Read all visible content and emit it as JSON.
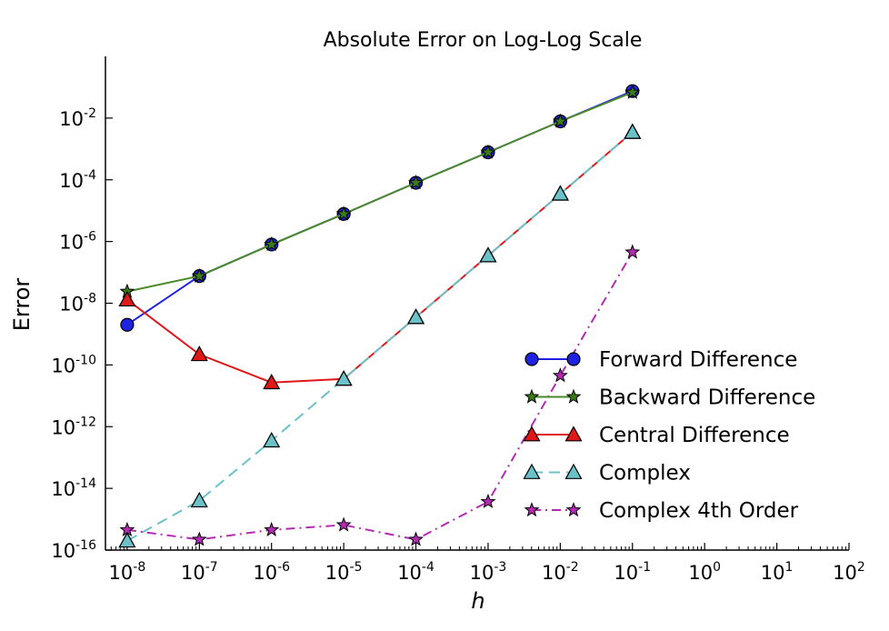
{
  "chart_data": {
    "type": "line",
    "title": "Absolute Error on Log-Log Scale",
    "xlabel": "h",
    "ylabel": "Error",
    "xscale": "log",
    "yscale": "log",
    "xlim": [
      5e-09,
      100
    ],
    "ylim": [
      1e-16,
      1
    ],
    "x_ticks": [
      {
        "base": "10",
        "exp": "-8",
        "value": 1e-08
      },
      {
        "base": "10",
        "exp": "-7",
        "value": 1e-07
      },
      {
        "base": "10",
        "exp": "-6",
        "value": 1e-06
      },
      {
        "base": "10",
        "exp": "-5",
        "value": 1e-05
      },
      {
        "base": "10",
        "exp": "-4",
        "value": 0.0001
      },
      {
        "base": "10",
        "exp": "-3",
        "value": 0.001
      },
      {
        "base": "10",
        "exp": "-2",
        "value": 0.01
      },
      {
        "base": "10",
        "exp": "-1",
        "value": 0.1
      },
      {
        "base": "10",
        "exp": "0",
        "value": 1
      },
      {
        "base": "10",
        "exp": "1",
        "value": 10
      },
      {
        "base": "10",
        "exp": "2",
        "value": 100
      }
    ],
    "y_ticks": [
      {
        "base": "10",
        "exp": "-2",
        "value": 0.01
      },
      {
        "base": "10",
        "exp": "-4",
        "value": 0.0001
      },
      {
        "base": "10",
        "exp": "-6",
        "value": 1e-06
      },
      {
        "base": "10",
        "exp": "-8",
        "value": 1e-08
      },
      {
        "base": "10",
        "exp": "-10",
        "value": 1e-10
      },
      {
        "base": "10",
        "exp": "-12",
        "value": 1e-12
      },
      {
        "base": "10",
        "exp": "-14",
        "value": 1e-14
      },
      {
        "base": "10",
        "exp": "-16",
        "value": 1e-16
      }
    ],
    "grid": false,
    "legend_position": "lower-right",
    "x": [
      1e-08,
      1e-07,
      1e-06,
      1e-05,
      0.0001,
      0.001,
      0.01,
      0.1
    ],
    "series": [
      {
        "name": "Forward Difference",
        "color": "#1f22e0",
        "marker": "circle",
        "marker_color": "#1f22e0",
        "dash": "solid",
        "values": [
          2e-09,
          7.6e-08,
          8e-07,
          7.8e-06,
          8e-05,
          0.00078,
          0.0078,
          0.075
        ]
      },
      {
        "name": "Backward Difference",
        "color": "#4a8a2a",
        "marker": "star",
        "marker_color": "#3a7a1a",
        "dash": "solid",
        "values": [
          2.4e-08,
          7.6e-08,
          8e-07,
          7.8e-06,
          8e-05,
          0.00078,
          0.0078,
          0.068
        ]
      },
      {
        "name": "Central Difference",
        "color": "#e01818",
        "marker": "triangle",
        "marker_color": "#e01818",
        "dash": "solid",
        "values": [
          1.3e-08,
          2.2e-10,
          2.7e-11,
          3.5e-11,
          3.5e-09,
          3.5e-07,
          3.5e-05,
          0.0035
        ]
      },
      {
        "name": "Complex",
        "color": "#6cc0c8",
        "marker": "triangle",
        "marker_color": "#6cc0c8",
        "dash": "dashed",
        "values": [
          2e-16,
          4e-15,
          3.5e-13,
          3.5e-11,
          3.5e-09,
          3.5e-07,
          3.5e-05,
          0.0035
        ]
      },
      {
        "name": "Complex 4th Order",
        "color": "#b22cb2",
        "marker": "star",
        "marker_color": "#b22cb2",
        "dash": "dashdot",
        "values": [
          4.5e-16,
          2.2e-16,
          4.5e-16,
          6.5e-16,
          2.2e-16,
          3.7e-15,
          4.5e-11,
          4.5e-07
        ]
      }
    ]
  }
}
